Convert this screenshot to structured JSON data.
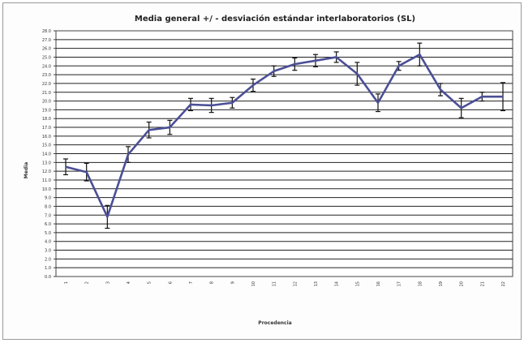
{
  "chart_data": {
    "type": "line",
    "title": "Media general +/ -  desviación estándar interlaboratorios (SL)",
    "xlabel": "Procedencia",
    "ylabel": "Media",
    "ylim": [
      0,
      28
    ],
    "ytick_step": 1,
    "grid": true,
    "legend": "none",
    "line_color": "#4b4f96",
    "error_color": "#111111",
    "categories": [
      "1",
      "2",
      "3",
      "4",
      "5",
      "6",
      "7",
      "8",
      "9",
      "10",
      "11",
      "12",
      "13",
      "14",
      "15",
      "16",
      "17",
      "18",
      "19",
      "20",
      "21",
      "22"
    ],
    "values": [
      12.5,
      11.9,
      6.8,
      13.9,
      16.7,
      17.0,
      19.6,
      19.5,
      19.8,
      21.8,
      23.4,
      24.2,
      24.6,
      25.0,
      23.1,
      19.8,
      24.0,
      25.3,
      21.3,
      19.2,
      20.5,
      20.5
    ],
    "errors": [
      0.9,
      1.0,
      1.3,
      0.9,
      0.9,
      0.8,
      0.7,
      0.8,
      0.6,
      0.7,
      0.6,
      0.7,
      0.7,
      0.6,
      1.3,
      1.0,
      0.5,
      1.3,
      0.7,
      1.1,
      0.5,
      1.6
    ]
  }
}
